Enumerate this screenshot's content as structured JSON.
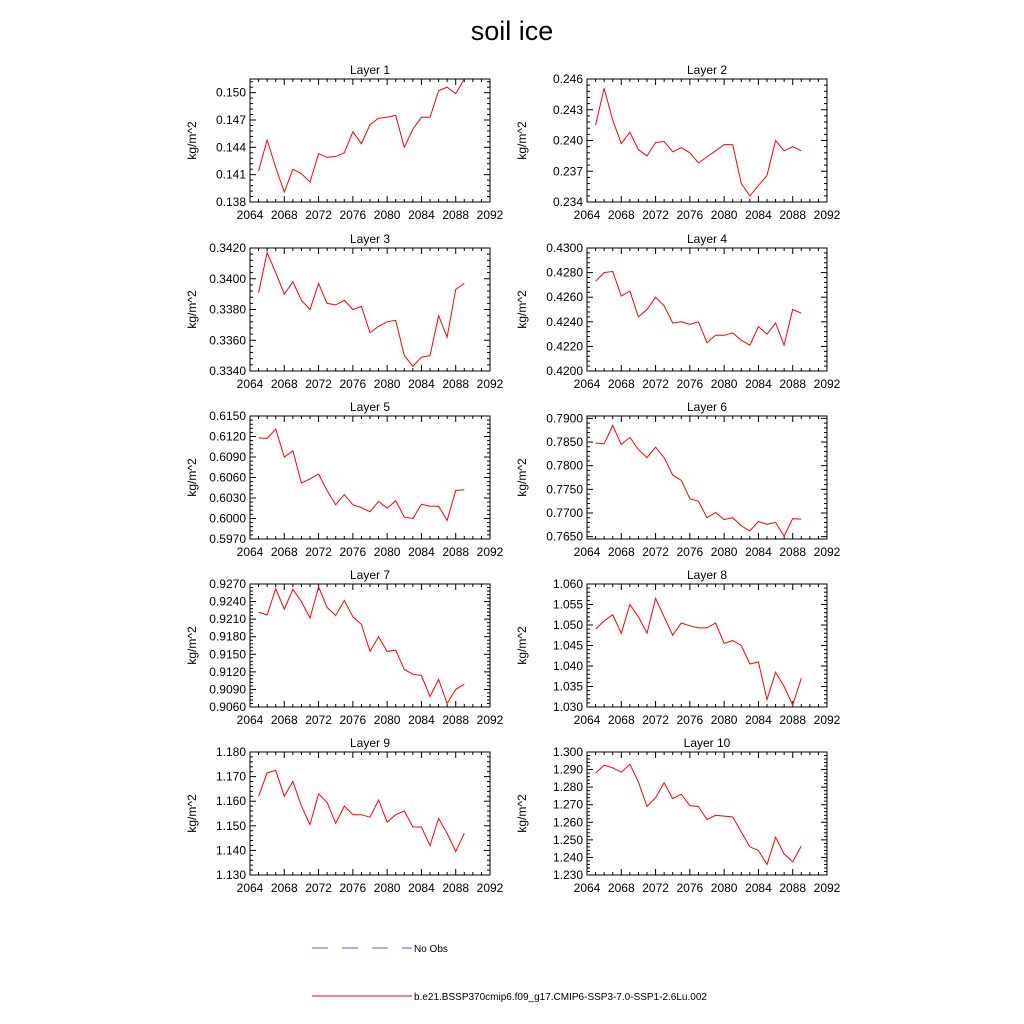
{
  "title": "soil ice",
  "legend": {
    "items": [
      {
        "label": "No Obs",
        "color": "#4a6fd8",
        "dash": true
      },
      {
        "label": "b.e21.BSSP370cmip6.f09_g17.CMIP6-SSP3-7.0-SSP1-2.6Lu.002",
        "color": "#ff0000",
        "dash": false
      }
    ]
  },
  "chart_data": [
    {
      "type": "line",
      "title": "Layer 1",
      "ylabel": "kg/m^2",
      "xlim": [
        2064,
        2092
      ],
      "xticks": [
        "2064",
        "2068",
        "2072",
        "2076",
        "2080",
        "2084",
        "2088",
        "2092"
      ],
      "ylim": [
        0.138,
        0.1515
      ],
      "yticks": [
        "0.138",
        "0.141",
        "0.144",
        "0.147",
        "0.150"
      ],
      "series": [
        {
          "color": "#ff0000",
          "x": [
            2065,
            2066,
            2067,
            2068,
            2069,
            2070,
            2071,
            2072,
            2073,
            2074,
            2075,
            2076,
            2077,
            2078,
            2079,
            2080,
            2081,
            2082,
            2083,
            2084,
            2085,
            2086,
            2087,
            2088,
            2089
          ],
          "y": [
            0.1414,
            0.1448,
            0.1418,
            0.1391,
            0.1416,
            0.1411,
            0.1402,
            0.1433,
            0.1429,
            0.143,
            0.1434,
            0.1457,
            0.1444,
            0.1465,
            0.1472,
            0.1473,
            0.1475,
            0.144,
            0.146,
            0.1473,
            0.1473,
            0.1502,
            0.1506,
            0.1499,
            0.1515
          ]
        }
      ]
    },
    {
      "type": "line",
      "title": "Layer 2",
      "ylabel": "kg/m^2",
      "xlim": [
        2064,
        2092
      ],
      "xticks": [
        "2064",
        "2068",
        "2072",
        "2076",
        "2080",
        "2084",
        "2088",
        "2092"
      ],
      "ylim": [
        0.234,
        0.246
      ],
      "yticks": [
        "0.234",
        "0.237",
        "0.240",
        "0.243",
        "0.246"
      ],
      "series": [
        {
          "color": "#ff0000",
          "x": [
            2065,
            2066,
            2067,
            2068,
            2069,
            2070,
            2071,
            2072,
            2073,
            2074,
            2075,
            2076,
            2077,
            2078,
            2079,
            2080,
            2081,
            2082,
            2083,
            2084,
            2085,
            2086,
            2087,
            2088,
            2089
          ],
          "y": [
            0.2415,
            0.2451,
            0.242,
            0.2397,
            0.2408,
            0.2391,
            0.2385,
            0.2398,
            0.2399,
            0.2389,
            0.2393,
            0.2388,
            0.2378,
            0.2384,
            0.239,
            0.2396,
            0.2396,
            0.2358,
            0.2346,
            0.2356,
            0.2366,
            0.24,
            0.239,
            0.2394,
            0.239
          ]
        }
      ]
    },
    {
      "type": "line",
      "title": "Layer 3",
      "ylabel": "kg/m^2",
      "xlim": [
        2064,
        2092
      ],
      "xticks": [
        "2064",
        "2068",
        "2072",
        "2076",
        "2080",
        "2084",
        "2088",
        "2092"
      ],
      "ylim": [
        0.334,
        0.342
      ],
      "yticks": [
        "0.3340",
        "0.3360",
        "0.3380",
        "0.3400",
        "0.3420"
      ],
      "series": [
        {
          "color": "#ff0000",
          "x": [
            2065,
            2066,
            2067,
            2068,
            2069,
            2070,
            2071,
            2072,
            2073,
            2074,
            2075,
            2076,
            2077,
            2078,
            2079,
            2080,
            2081,
            2082,
            2083,
            2084,
            2085,
            2086,
            2087,
            2088,
            2089
          ],
          "y": [
            0.3391,
            0.3417,
            0.3404,
            0.339,
            0.3398,
            0.3386,
            0.338,
            0.3397,
            0.3384,
            0.3383,
            0.3386,
            0.338,
            0.3382,
            0.3365,
            0.3369,
            0.3372,
            0.3373,
            0.335,
            0.3343,
            0.3349,
            0.335,
            0.3376,
            0.3362,
            0.3393,
            0.3397
          ]
        }
      ]
    },
    {
      "type": "line",
      "title": "Layer 4",
      "ylabel": "kg/m^2",
      "xlim": [
        2064,
        2092
      ],
      "xticks": [
        "2064",
        "2068",
        "2072",
        "2076",
        "2080",
        "2084",
        "2088",
        "2092"
      ],
      "ylim": [
        0.42,
        0.43
      ],
      "yticks": [
        "0.4200",
        "0.4220",
        "0.4240",
        "0.4260",
        "0.4280",
        "0.4300"
      ],
      "series": [
        {
          "color": "#ff0000",
          "x": [
            2065,
            2066,
            2067,
            2068,
            2069,
            2070,
            2071,
            2072,
            2073,
            2074,
            2075,
            2076,
            2077,
            2078,
            2079,
            2080,
            2081,
            2082,
            2083,
            2084,
            2085,
            2086,
            2087,
            2088,
            2089
          ],
          "y": [
            0.4273,
            0.428,
            0.4281,
            0.4261,
            0.4265,
            0.4244,
            0.425,
            0.426,
            0.4253,
            0.4239,
            0.424,
            0.4238,
            0.424,
            0.4223,
            0.4229,
            0.4229,
            0.4231,
            0.4225,
            0.4221,
            0.4236,
            0.423,
            0.4239,
            0.4221,
            0.425,
            0.4247
          ]
        }
      ]
    },
    {
      "type": "line",
      "title": "Layer 5",
      "ylabel": "kg/m^2",
      "xlim": [
        2064,
        2092
      ],
      "xticks": [
        "2064",
        "2068",
        "2072",
        "2076",
        "2080",
        "2084",
        "2088",
        "2092"
      ],
      "ylim": [
        0.597,
        0.615
      ],
      "yticks": [
        "0.5970",
        "0.6000",
        "0.6030",
        "0.6060",
        "0.6090",
        "0.6120",
        "0.6150"
      ],
      "series": [
        {
          "color": "#ff0000",
          "x": [
            2065,
            2066,
            2067,
            2068,
            2069,
            2070,
            2071,
            2072,
            2073,
            2074,
            2075,
            2076,
            2077,
            2078,
            2079,
            2080,
            2081,
            2082,
            2083,
            2084,
            2085,
            2086,
            2087,
            2088,
            2089
          ],
          "y": [
            0.6118,
            0.6117,
            0.6131,
            0.609,
            0.6099,
            0.6052,
            0.6058,
            0.6065,
            0.6041,
            0.602,
            0.6035,
            0.602,
            0.6016,
            0.601,
            0.6025,
            0.6015,
            0.6026,
            0.6002,
            0.6,
            0.6021,
            0.6018,
            0.6018,
            0.5997,
            0.6041,
            0.6042
          ]
        }
      ]
    },
    {
      "type": "line",
      "title": "Layer 6",
      "ylabel": "kg/m^2",
      "xlim": [
        2064,
        2092
      ],
      "xticks": [
        "2064",
        "2068",
        "2072",
        "2076",
        "2080",
        "2084",
        "2088",
        "2092"
      ],
      "ylim": [
        0.7645,
        0.7905
      ],
      "yticks": [
        "0.7650",
        "0.7700",
        "0.7750",
        "0.7800",
        "0.7850",
        "0.7900"
      ],
      "series": [
        {
          "color": "#ff0000",
          "x": [
            2065,
            2066,
            2067,
            2068,
            2069,
            2070,
            2071,
            2072,
            2073,
            2074,
            2075,
            2076,
            2077,
            2078,
            2079,
            2080,
            2081,
            2082,
            2083,
            2084,
            2085,
            2086,
            2087,
            2088,
            2089
          ],
          "y": [
            0.7848,
            0.7846,
            0.7885,
            0.7845,
            0.786,
            0.7834,
            0.7817,
            0.7839,
            0.7817,
            0.778,
            0.7769,
            0.773,
            0.7725,
            0.769,
            0.7701,
            0.7686,
            0.769,
            0.7673,
            0.7662,
            0.7682,
            0.7676,
            0.768,
            0.7651,
            0.7688,
            0.7687
          ]
        }
      ]
    },
    {
      "type": "line",
      "title": "Layer 7",
      "ylabel": "kg/m^2",
      "xlim": [
        2064,
        2092
      ],
      "xticks": [
        "2064",
        "2068",
        "2072",
        "2076",
        "2080",
        "2084",
        "2088",
        "2092"
      ],
      "ylim": [
        0.906,
        0.927
      ],
      "yticks": [
        "0.9060",
        "0.9090",
        "0.9120",
        "0.9150",
        "0.9180",
        "0.9210",
        "0.9240",
        "0.9270"
      ],
      "series": [
        {
          "color": "#ff0000",
          "x": [
            2065,
            2066,
            2067,
            2068,
            2069,
            2070,
            2071,
            2072,
            2073,
            2074,
            2075,
            2076,
            2077,
            2078,
            2079,
            2080,
            2081,
            2082,
            2083,
            2084,
            2085,
            2086,
            2087,
            2088,
            2089
          ],
          "y": [
            0.9222,
            0.9217,
            0.9262,
            0.9227,
            0.9261,
            0.924,
            0.9212,
            0.9265,
            0.923,
            0.9216,
            0.9242,
            0.9214,
            0.9201,
            0.9155,
            0.918,
            0.9155,
            0.9157,
            0.9124,
            0.9116,
            0.9114,
            0.9078,
            0.9107,
            0.9066,
            0.909,
            0.9099
          ]
        }
      ]
    },
    {
      "type": "line",
      "title": "Layer 8",
      "ylabel": "kg/m^2",
      "xlim": [
        2064,
        2092
      ],
      "xticks": [
        "2064",
        "2068",
        "2072",
        "2076",
        "2080",
        "2084",
        "2088",
        "2092"
      ],
      "ylim": [
        1.03,
        1.06
      ],
      "yticks": [
        "1.030",
        "1.035",
        "1.040",
        "1.045",
        "1.050",
        "1.055",
        "1.060"
      ],
      "series": [
        {
          "color": "#ff0000",
          "x": [
            2065,
            2066,
            2067,
            2068,
            2069,
            2070,
            2071,
            2072,
            2073,
            2074,
            2075,
            2076,
            2077,
            2078,
            2079,
            2080,
            2081,
            2082,
            2083,
            2084,
            2085,
            2086,
            2087,
            2088,
            2089
          ],
          "y": [
            1.049,
            1.051,
            1.0525,
            1.048,
            1.055,
            1.052,
            1.048,
            1.0565,
            1.052,
            1.0475,
            1.0505,
            1.0498,
            1.0493,
            1.0493,
            1.0505,
            1.0455,
            1.0462,
            1.045,
            1.0405,
            1.041,
            1.0318,
            1.0385,
            1.035,
            1.0305,
            1.037
          ]
        }
      ]
    },
    {
      "type": "line",
      "title": "Layer 9",
      "ylabel": "kg/m^2",
      "xlim": [
        2064,
        2092
      ],
      "xticks": [
        "2064",
        "2068",
        "2072",
        "2076",
        "2080",
        "2084",
        "2088",
        "2092"
      ],
      "ylim": [
        1.13,
        1.18
      ],
      "yticks": [
        "1.130",
        "1.140",
        "1.150",
        "1.160",
        "1.170",
        "1.180"
      ],
      "series": [
        {
          "color": "#ff0000",
          "x": [
            2065,
            2066,
            2067,
            2068,
            2069,
            2070,
            2071,
            2072,
            2073,
            2074,
            2075,
            2076,
            2077,
            2078,
            2079,
            2080,
            2081,
            2082,
            2083,
            2084,
            2085,
            2086,
            2087,
            2088,
            2089
          ],
          "y": [
            1.162,
            1.1715,
            1.1725,
            1.162,
            1.168,
            1.158,
            1.1505,
            1.163,
            1.1595,
            1.151,
            1.158,
            1.1545,
            1.1545,
            1.1535,
            1.1605,
            1.1515,
            1.1545,
            1.156,
            1.1495,
            1.1495,
            1.142,
            1.153,
            1.147,
            1.1395,
            1.147
          ]
        }
      ]
    },
    {
      "type": "line",
      "title": "Layer 10",
      "ylabel": "kg/m^2",
      "xlim": [
        2064,
        2092
      ],
      "xticks": [
        "2064",
        "2068",
        "2072",
        "2076",
        "2080",
        "2084",
        "2088",
        "2092"
      ],
      "ylim": [
        1.23,
        1.3
      ],
      "yticks": [
        "1.230",
        "1.240",
        "1.250",
        "1.260",
        "1.270",
        "1.280",
        "1.290",
        "1.300"
      ],
      "series": [
        {
          "color": "#ff0000",
          "x": [
            2065,
            2066,
            2067,
            2068,
            2069,
            2070,
            2071,
            2072,
            2073,
            2074,
            2075,
            2076,
            2077,
            2078,
            2079,
            2080,
            2081,
            2082,
            2083,
            2084,
            2085,
            2086,
            2087,
            2088,
            2089
          ],
          "y": [
            1.288,
            1.2925,
            1.291,
            1.2885,
            1.293,
            1.283,
            1.269,
            1.274,
            1.2825,
            1.2735,
            1.276,
            1.2695,
            1.269,
            1.2615,
            1.264,
            1.2635,
            1.263,
            1.2545,
            1.246,
            1.244,
            1.236,
            1.2515,
            1.242,
            1.2375,
            1.2465
          ]
        }
      ]
    }
  ]
}
